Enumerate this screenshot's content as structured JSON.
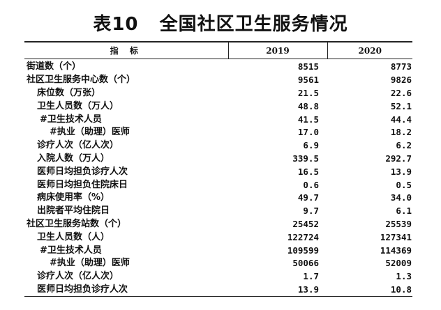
{
  "title": "表10   全国社区卫生服务情况",
  "table": {
    "header": {
      "indicator": "指 标",
      "year1": "2019",
      "year2": "2020"
    },
    "rows": [
      {
        "label": "街道数（个）",
        "v2019": "8515",
        "v2020": "8773",
        "indent": 0
      },
      {
        "label": "社区卫生服务中心数（个）",
        "v2019": "9561",
        "v2020": "9826",
        "indent": 0
      },
      {
        "label": "床位数（万张）",
        "v2019": "21.5",
        "v2020": "22.6",
        "indent": 1
      },
      {
        "label": "卫生人员数（万人）",
        "v2019": "48.8",
        "v2020": "52.1",
        "indent": 1
      },
      {
        "label": "#卫生技术人员",
        "v2019": "41.5",
        "v2020": "44.4",
        "indent": 2
      },
      {
        "label": "#执业（助理）医师",
        "v2019": "17.0",
        "v2020": "18.2",
        "indent": 3
      },
      {
        "label": "诊疗人次（亿人次）",
        "v2019": "6.9",
        "v2020": "6.2",
        "indent": 1
      },
      {
        "label": "入院人数（万人）",
        "v2019": "339.5",
        "v2020": "292.7",
        "indent": 1
      },
      {
        "label": "医师日均担负诊疗人次",
        "v2019": "16.5",
        "v2020": "13.9",
        "indent": 1
      },
      {
        "label": "医师日均担负住院床日",
        "v2019": "0.6",
        "v2020": "0.5",
        "indent": 1
      },
      {
        "label": "病床使用率（%）",
        "v2019": "49.7",
        "v2020": "34.0",
        "indent": 1
      },
      {
        "label": "出院者平均住院日",
        "v2019": "9.7",
        "v2020": "6.1",
        "indent": 1
      },
      {
        "label": "社区卫生服务站数（个）",
        "v2019": "25452",
        "v2020": "25539",
        "indent": 0
      },
      {
        "label": "卫生人员数（人）",
        "v2019": "122724",
        "v2020": "127341",
        "indent": 1
      },
      {
        "label": "#卫生技术人员",
        "v2019": "109599",
        "v2020": "114369",
        "indent": 2
      },
      {
        "label": "#执业（助理）医师",
        "v2019": "50066",
        "v2020": "52009",
        "indent": 3
      },
      {
        "label": "诊疗人次（亿人次）",
        "v2019": "1.7",
        "v2020": "1.3",
        "indent": 1
      },
      {
        "label": "医师日均担负诊疗人次",
        "v2019": "13.9",
        "v2020": "10.8",
        "indent": 1
      }
    ]
  }
}
